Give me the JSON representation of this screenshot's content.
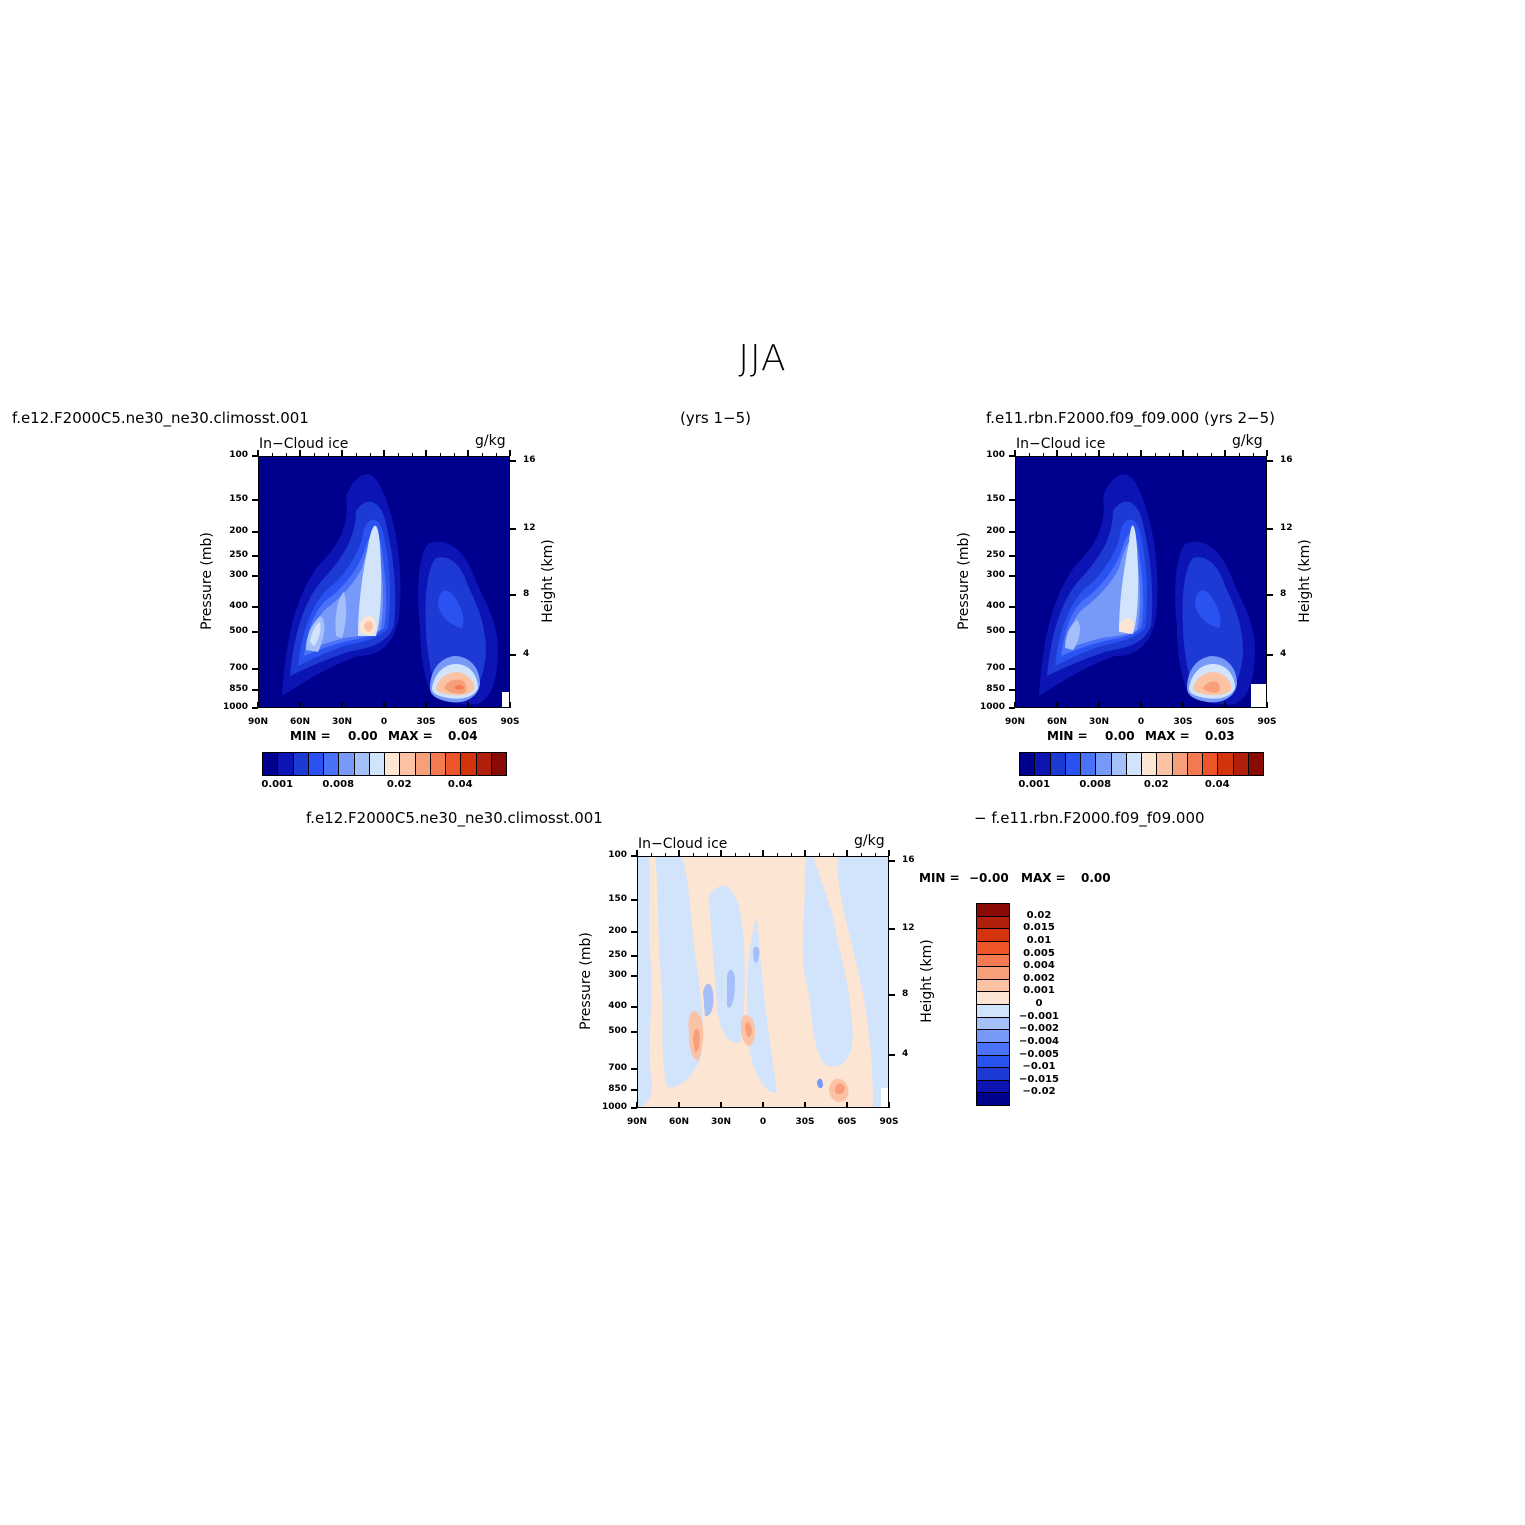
{
  "figure": {
    "title": "JJA",
    "row1_left": "f.e12.F2000C5.ne30_ne30.climosst.001",
    "row1_center": "(yrs 1−5)",
    "row1_right": "f.e11.rbn.F2000.f09_f09.000 (yrs 2−5)",
    "row2_left": "f.e12.F2000C5.ne30_ne30.climosst.001",
    "row2_right": "− f.e11.rbn.F2000.f09_f09.000"
  },
  "colors": {
    "levels": [
      "#00008f",
      "#0c14b4",
      "#1d3ad4",
      "#2a52f0",
      "#4a72f8",
      "#7799f8",
      "#a5bffa",
      "#d2e3fc",
      "#fde5d3",
      "#fbc2a4",
      "#f79e7a",
      "#f37a50",
      "#ee5528",
      "#d4340c",
      "#b0200a",
      "#8a0a06"
    ]
  },
  "chart_data": [
    {
      "type": "contour",
      "variable": "In−Cloud ice",
      "units": "g/kg",
      "xlabel": "",
      "ylabel": "Pressure (mb)",
      "y2label": "Height (km)",
      "x_ticks": [
        "90N",
        "60N",
        "30N",
        "0",
        "30S",
        "60S",
        "90S"
      ],
      "y_ticks": [
        "100",
        "150",
        "200",
        "250",
        "300",
        "400",
        "500",
        "700",
        "850",
        "1000"
      ],
      "y2_ticks": [
        "16",
        "12",
        "8",
        "4"
      ],
      "min_label": "MIN =",
      "min_value": "0.00",
      "max_label": "MAX =",
      "max_value": "0.04",
      "legend": [
        "0.001",
        "0.008",
        "0.02",
        "0.04"
      ],
      "ylim": [
        1000,
        100
      ]
    },
    {
      "type": "contour",
      "variable": "In−Cloud ice",
      "units": "g/kg",
      "xlabel": "",
      "ylabel": "Pressure (mb)",
      "y2label": "Height (km)",
      "x_ticks": [
        "90N",
        "60N",
        "30N",
        "0",
        "30S",
        "60S",
        "90S"
      ],
      "y_ticks": [
        "100",
        "150",
        "200",
        "250",
        "300",
        "400",
        "500",
        "700",
        "850",
        "1000"
      ],
      "y2_ticks": [
        "16",
        "12",
        "8",
        "4"
      ],
      "min_label": "MIN =",
      "min_value": "0.00",
      "max_label": "MAX =",
      "max_value": "0.03",
      "legend": [
        "0.001",
        "0.008",
        "0.02",
        "0.04"
      ],
      "ylim": [
        1000,
        100
      ]
    },
    {
      "type": "contour",
      "variable": "In−Cloud ice",
      "units": "g/kg",
      "xlabel": "",
      "ylabel": "Pressure (mb)",
      "y2label": "Height (km)",
      "x_ticks": [
        "90N",
        "60N",
        "30N",
        "0",
        "30S",
        "60S",
        "90S"
      ],
      "y_ticks": [
        "100",
        "150",
        "200",
        "250",
        "300",
        "400",
        "500",
        "700",
        "850",
        "1000"
      ],
      "y2_ticks": [
        "16",
        "12",
        "8",
        "4"
      ],
      "min_label": "MIN =",
      "min_value": "−0.00",
      "max_label": "MAX =",
      "max_value": "0.00",
      "legend": [
        "0.02",
        "0.015",
        "0.01",
        "0.005",
        "0.004",
        "0.002",
        "0.001",
        "0",
        "−0.001",
        "−0.002",
        "−0.004",
        "−0.005",
        "−0.01",
        "−0.015",
        "−0.02"
      ],
      "ylim": [
        1000,
        100
      ]
    }
  ]
}
